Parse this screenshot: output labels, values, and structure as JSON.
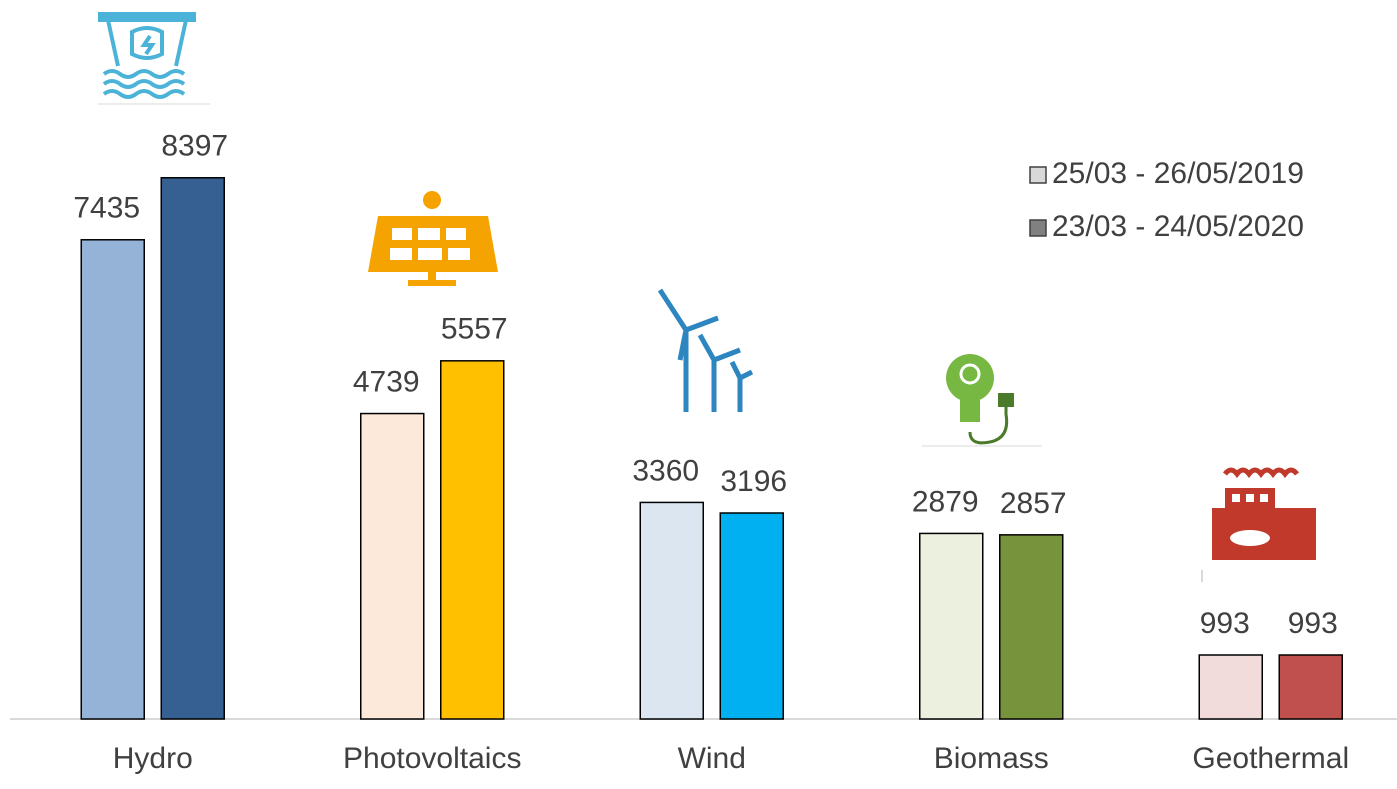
{
  "chart_data": {
    "type": "bar",
    "categories": [
      "Hydro",
      "Photovoltaics",
      "Wind",
      "Biomass",
      "Geothermal"
    ],
    "series": [
      {
        "name": "25/03 - 26/05/2019",
        "color": "#d9d9d9",
        "colors": [
          "#95b3d7",
          "#fde9d9",
          "#dce6f1",
          "#ebf1de",
          "#f2dcdb"
        ],
        "values": [
          7435,
          4739,
          3360,
          2879,
          993
        ]
      },
      {
        "name": "23/03 - 24/05/2020",
        "color": "#808080",
        "colors": [
          "#376092",
          "#ffc000",
          "#00b0f0",
          "#77933c",
          "#c0504d"
        ],
        "values": [
          8397,
          5557,
          3196,
          2857,
          993
        ]
      }
    ],
    "ylim": [
      0,
      11000
    ],
    "legend": "top-right"
  }
}
